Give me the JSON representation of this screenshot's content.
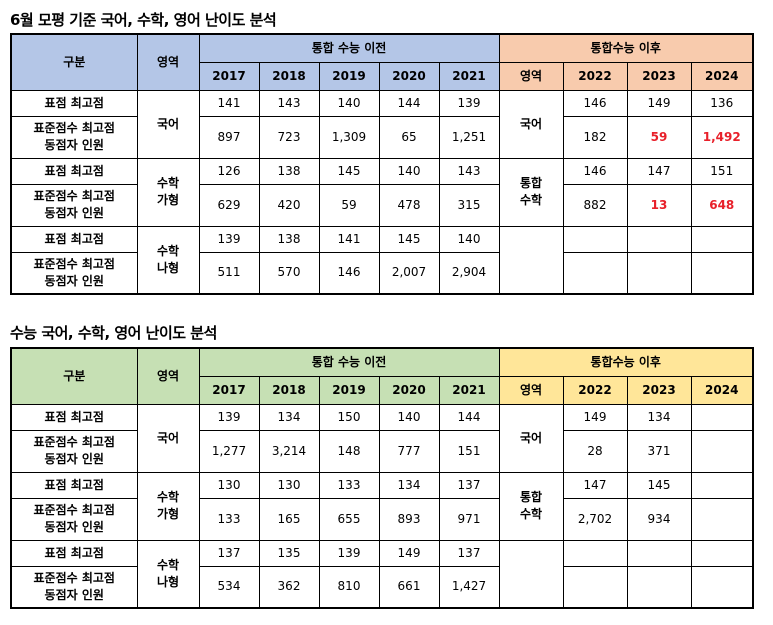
{
  "tables": [
    {
      "title": "6월 모평 기준 국어, 수학, 영어 난이도 분석",
      "header": {
        "category": "구분",
        "area": "영역",
        "before_group": "통합 수능 이전",
        "after_group": "통합수능 이후",
        "after_area": "영역"
      },
      "years_before": [
        "2017",
        "2018",
        "2019",
        "2020",
        "2021"
      ],
      "years_after": [
        "2022",
        "2023",
        "2024"
      ],
      "row_labels": {
        "top_score": "표점 최고점",
        "tied_line1": "표준점수 최고점",
        "tied_line2": "동점자 인원"
      },
      "groups": [
        {
          "area_before": "국어",
          "area_after": "국어",
          "top_before": [
            "141",
            "143",
            "140",
            "144",
            "139"
          ],
          "tied_before": [
            "897",
            "723",
            "1,309",
            "65",
            "1,251"
          ],
          "top_after": [
            "146",
            "149",
            "136"
          ],
          "tied_after": [
            "182",
            "59",
            "1,492"
          ]
        },
        {
          "area_before": "수학\n가형",
          "area_after": "통합\n수학",
          "top_before": [
            "126",
            "138",
            "145",
            "140",
            "143"
          ],
          "tied_before": [
            "629",
            "420",
            "59",
            "478",
            "315"
          ],
          "top_after": [
            "146",
            "147",
            "151"
          ],
          "tied_after": [
            "882",
            "13",
            "648"
          ]
        },
        {
          "area_before": "수학\n나형",
          "area_after": "",
          "top_before": [
            "139",
            "138",
            "141",
            "145",
            "140"
          ],
          "tied_before": [
            "511",
            "570",
            "146",
            "2,007",
            "2,904"
          ],
          "top_after": [
            "",
            "",
            ""
          ],
          "tied_after": [
            "",
            "",
            ""
          ]
        }
      ],
      "highlight_color": "#e8202a"
    },
    {
      "title": "수능 국어, 수학, 영어 난이도 분석",
      "header": {
        "category": "구분",
        "area": "영역",
        "before_group": "통합 수능 이전",
        "after_group": "통합수능 이후",
        "after_area": "영역"
      },
      "years_before": [
        "2017",
        "2018",
        "2019",
        "2020",
        "2021"
      ],
      "years_after": [
        "2022",
        "2023",
        "2024"
      ],
      "row_labels": {
        "top_score": "표점 최고점",
        "tied_line1": "표준점수 최고점",
        "tied_line2": "동점자 인원"
      },
      "groups": [
        {
          "area_before": "국어",
          "area_after": "국어",
          "top_before": [
            "139",
            "134",
            "150",
            "140",
            "144"
          ],
          "tied_before": [
            "1,277",
            "3,214",
            "148",
            "777",
            "151"
          ],
          "top_after": [
            "149",
            "134",
            ""
          ],
          "tied_after": [
            "28",
            "371",
            ""
          ]
        },
        {
          "area_before": "수학\n가형",
          "area_after": "통합\n수학",
          "top_before": [
            "130",
            "130",
            "133",
            "134",
            "137"
          ],
          "tied_before": [
            "133",
            "165",
            "655",
            "893",
            "971"
          ],
          "top_after": [
            "147",
            "145",
            ""
          ],
          "tied_after": [
            "2,702",
            "934",
            ""
          ]
        },
        {
          "area_before": "수학\n나형",
          "area_after": "",
          "top_before": [
            "137",
            "135",
            "139",
            "149",
            "137"
          ],
          "tied_before": [
            "534",
            "362",
            "810",
            "661",
            "1,427"
          ],
          "top_after": [
            "",
            "",
            ""
          ],
          "tied_after": [
            "",
            "",
            ""
          ]
        }
      ]
    }
  ],
  "colors": {
    "table1_header_before": "#b4c6e7",
    "table1_header_after": "#f8cbad",
    "table2_header_before": "#c6e0b4",
    "table2_header_after": "#ffe699"
  }
}
